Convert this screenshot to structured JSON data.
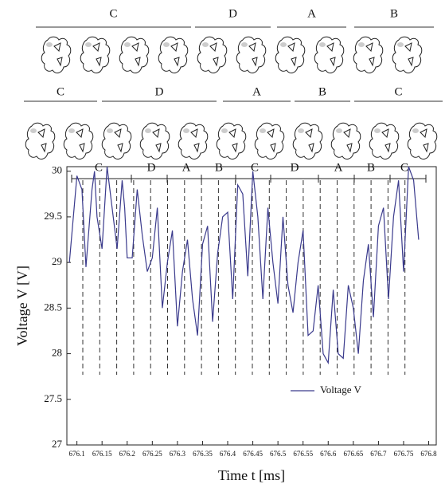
{
  "chart_data": {
    "type": "line",
    "x_label": "Time t [ms]",
    "y_label": "Voltage V [V]",
    "top_row_labels": [
      "C",
      "D",
      "A",
      "B"
    ],
    "second_row_labels": [
      "C",
      "D",
      "A",
      "B",
      "C"
    ],
    "phase_labels": [
      "C",
      "D",
      "A",
      "B",
      "C",
      "D",
      "A",
      "B",
      "C"
    ],
    "x": [
      676.085,
      676.1,
      676.11,
      676.118,
      676.13,
      676.135,
      676.14,
      676.15,
      676.16,
      676.17,
      676.18,
      676.19,
      676.195,
      676.2,
      676.21,
      676.22,
      676.23,
      676.24,
      676.25,
      676.26,
      676.27,
      676.28,
      676.29,
      676.3,
      676.31,
      676.32,
      676.33,
      676.34,
      676.35,
      676.36,
      676.37,
      676.38,
      676.39,
      676.4,
      676.41,
      676.42,
      676.43,
      676.44,
      676.45,
      676.46,
      676.47,
      676.48,
      676.49,
      676.5,
      676.51,
      676.52,
      676.53,
      676.54,
      676.55,
      676.56,
      676.57,
      676.58,
      676.59,
      676.6,
      676.61,
      676.62,
      676.63,
      676.64,
      676.65,
      676.66,
      676.67,
      676.68,
      676.69,
      676.7,
      676.71,
      676.72,
      676.73,
      676.74,
      676.75,
      676.76,
      676.77,
      676.78
    ],
    "series": [
      {
        "name": "Voltage V",
        "color": "#3a3a8c",
        "values": [
          29.0,
          29.95,
          29.8,
          28.95,
          29.8,
          30.0,
          29.5,
          29.15,
          30.05,
          29.6,
          29.15,
          29.9,
          29.6,
          29.05,
          29.05,
          29.8,
          29.3,
          28.9,
          29.05,
          29.6,
          28.5,
          29.0,
          29.35,
          28.3,
          28.9,
          29.25,
          28.6,
          28.2,
          29.2,
          29.4,
          28.35,
          29.1,
          29.5,
          29.55,
          28.6,
          29.85,
          29.75,
          28.85,
          30.0,
          29.5,
          28.6,
          29.6,
          29.0,
          28.55,
          29.5,
          28.75,
          28.45,
          29.0,
          29.35,
          28.2,
          28.25,
          28.75,
          28.0,
          27.9,
          28.7,
          28.0,
          27.95,
          28.75,
          28.5,
          28.0,
          28.8,
          29.2,
          28.4,
          29.4,
          29.6,
          28.6,
          29.5,
          29.9,
          28.9,
          30.05,
          29.9,
          29.25
        ]
      }
    ],
    "xlim": [
      676.08,
      676.815
    ],
    "xticks": [
      676.1,
      676.15,
      676.2,
      676.25,
      676.3,
      676.35,
      676.4,
      676.45,
      676.5,
      676.55,
      676.6,
      676.65,
      676.7,
      676.75,
      676.8
    ],
    "ylim": [
      27,
      30.05
    ],
    "yticks": [
      27,
      27.5,
      28,
      28.5,
      29,
      29.5,
      30
    ],
    "legend": "lower right"
  }
}
